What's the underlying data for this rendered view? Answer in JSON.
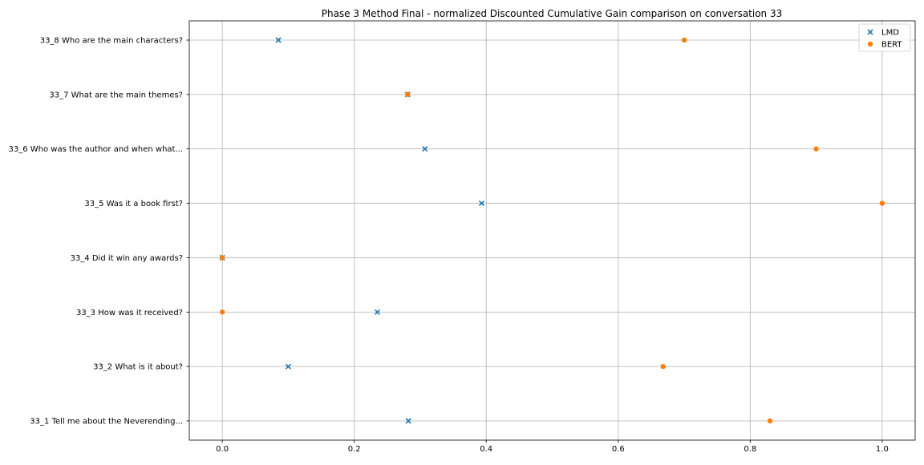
{
  "chart_data": {
    "type": "scatter",
    "title": "Phase 3 Method Final - normalized Discounted Cumulative Gain comparison on conversation 33",
    "xlabel": "",
    "ylabel": "",
    "xlim": [
      -0.05,
      1.05
    ],
    "xticks": [
      "0.0",
      "0.2",
      "0.4",
      "0.6",
      "0.8",
      "1.0"
    ],
    "grid": true,
    "legend_position": "top-right",
    "categories": [
      "33_1 Tell me about the Neverending...",
      "33_2 What is it about?",
      "33_3 How was it received?",
      "33_4 Did it win any awards?",
      "33_5 Was it a book first?",
      "33_6 Who was the author and when what...",
      "33_7 What are the main themes?",
      "33_8 Who are the main characters?"
    ],
    "series": [
      {
        "name": "LMD",
        "marker": "x",
        "color": "#1f77b4",
        "values": [
          0.282,
          0.1,
          0.235,
          0.0,
          0.393,
          0.307,
          0.281,
          0.085
        ]
      },
      {
        "name": "BERT",
        "marker": "circle",
        "color": "#ff7f0e",
        "values": [
          0.83,
          0.668,
          0.0,
          0.0,
          1.0,
          0.9,
          0.281,
          0.7
        ]
      }
    ]
  }
}
